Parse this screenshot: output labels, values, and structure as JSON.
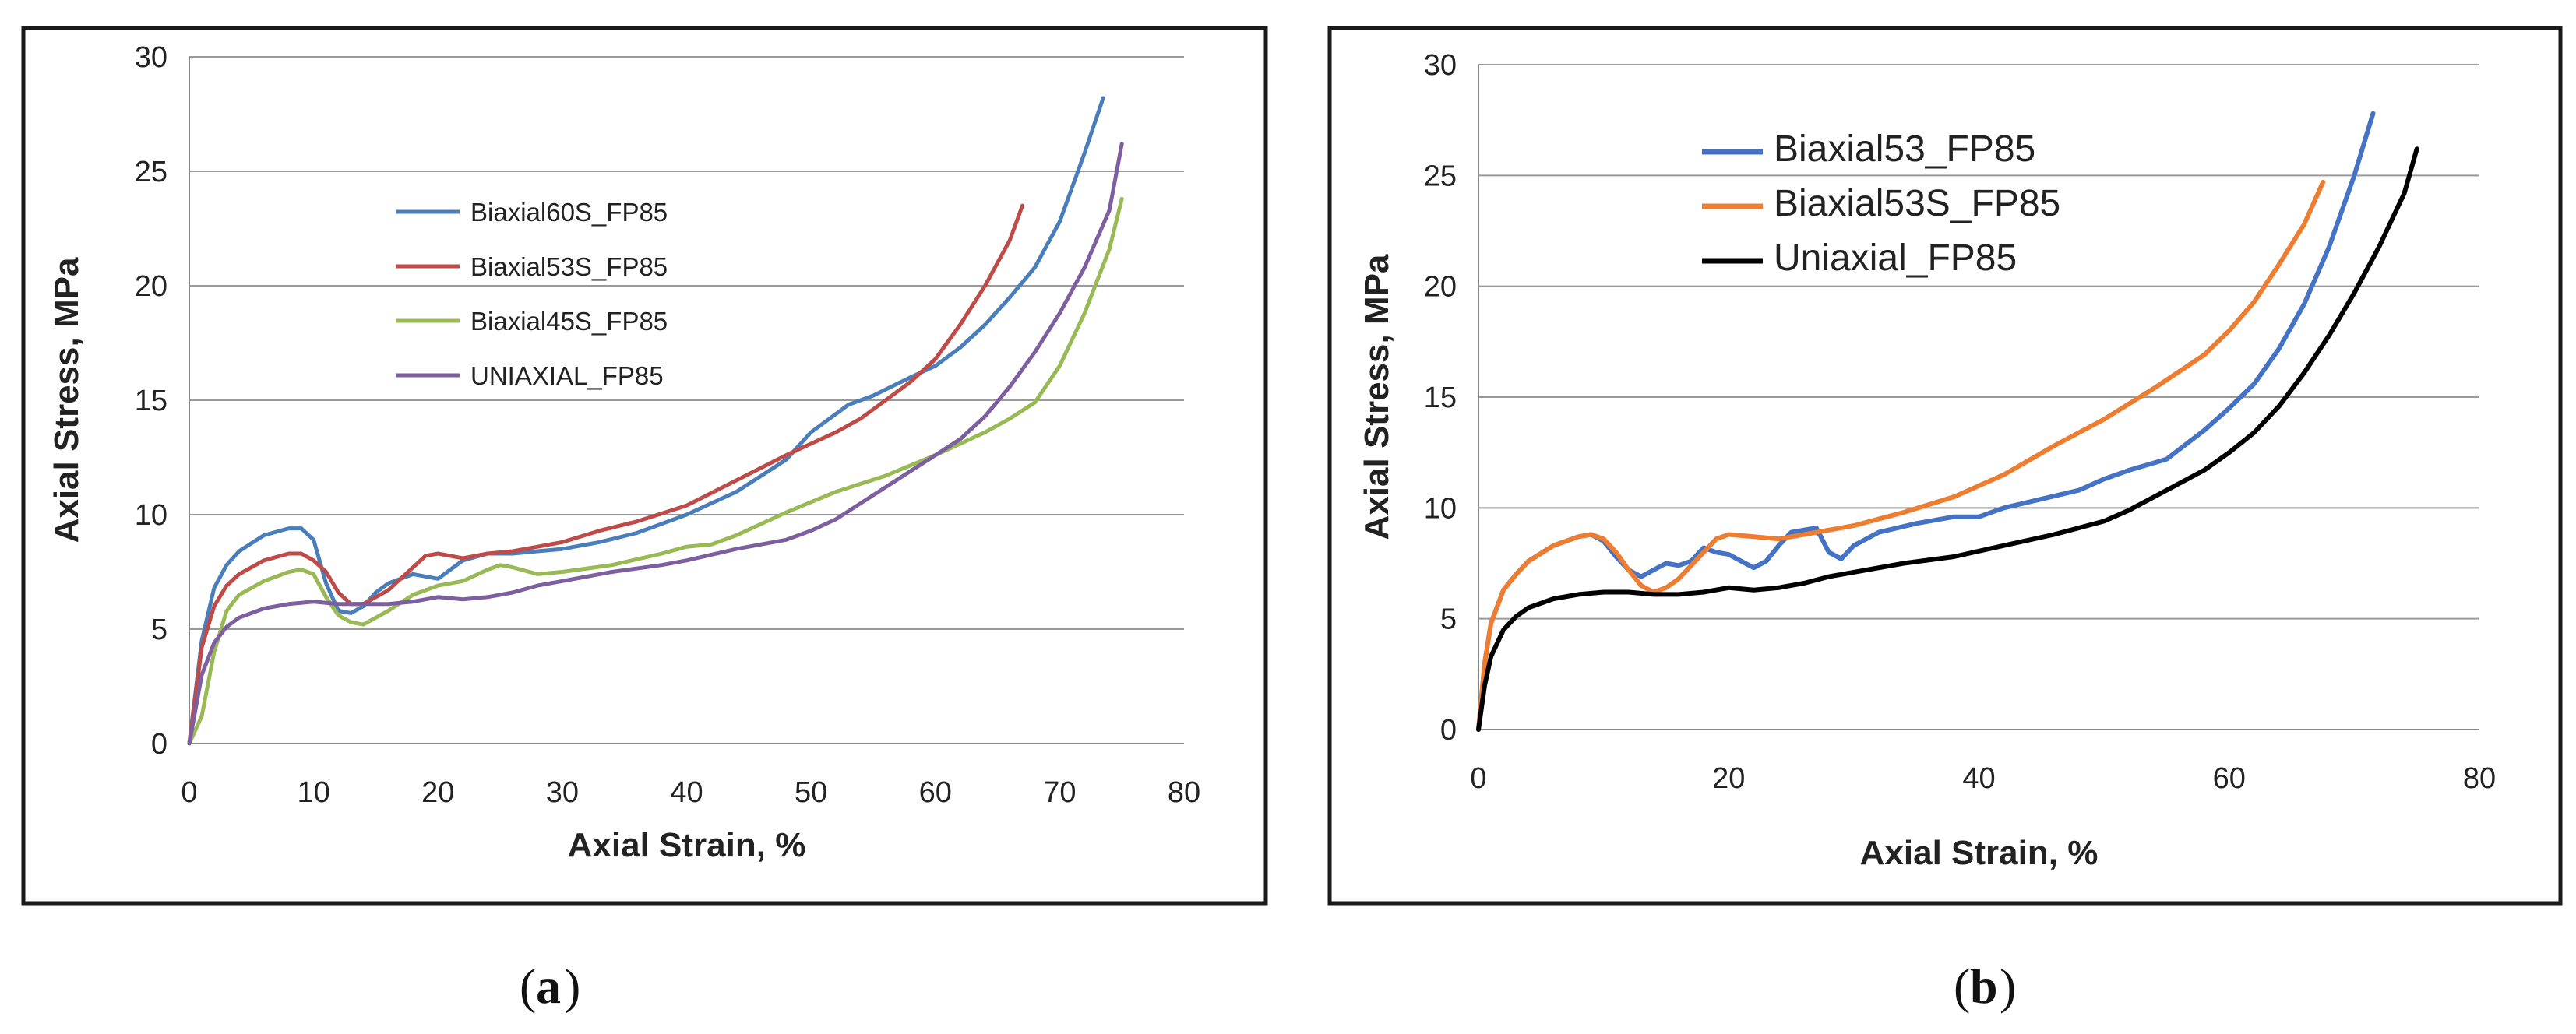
{
  "chart_data": [
    {
      "type": "line",
      "panel_label": "a",
      "title": "",
      "xlabel": "Axial Strain, %",
      "ylabel": "Axial Stress, MPa",
      "xlim": [
        0,
        80
      ],
      "ylim": [
        0,
        30
      ],
      "xticks": [
        0,
        10,
        20,
        30,
        40,
        50,
        60,
        70,
        80
      ],
      "yticks": [
        0,
        5,
        10,
        15,
        20,
        25,
        30
      ],
      "grid": true,
      "legend_position": "upper-left",
      "series": [
        {
          "name": "Biaxial60S_FP85",
          "color": "#4a7ebb",
          "x": [
            0,
            1,
            2,
            3,
            4,
            6,
            8,
            9,
            10,
            11,
            12,
            13,
            14,
            15,
            16,
            18,
            20,
            22,
            24,
            26,
            28,
            30,
            33,
            36,
            40,
            44,
            48,
            50,
            52,
            53,
            55,
            58,
            60,
            62,
            64,
            66,
            68,
            70,
            72,
            73.5
          ],
          "y": [
            0,
            4.5,
            6.8,
            7.8,
            8.4,
            9.1,
            9.4,
            9.4,
            8.9,
            7.0,
            5.8,
            5.7,
            6.0,
            6.6,
            7.0,
            7.4,
            7.2,
            8.0,
            8.3,
            8.3,
            8.4,
            8.5,
            8.8,
            9.2,
            10.0,
            11.0,
            12.4,
            13.6,
            14.4,
            14.8,
            15.2,
            16.0,
            16.5,
            17.3,
            18.3,
            19.5,
            20.8,
            22.8,
            25.8,
            28.2
          ]
        },
        {
          "name": "Biaxial53S_FP85",
          "color": "#be4b48",
          "x": [
            0,
            1,
            2,
            3,
            4,
            6,
            8,
            9,
            10,
            11,
            12,
            13,
            14,
            16,
            18,
            19,
            20,
            22,
            24,
            26,
            28,
            30,
            33,
            36,
            40,
            44,
            48,
            50,
            52,
            54,
            56,
            58,
            60,
            62,
            64,
            66,
            67
          ],
          "y": [
            0,
            4.2,
            6.0,
            6.9,
            7.4,
            8.0,
            8.3,
            8.3,
            8.0,
            7.5,
            6.6,
            6.1,
            6.1,
            6.7,
            7.7,
            8.2,
            8.3,
            8.1,
            8.3,
            8.4,
            8.6,
            8.8,
            9.3,
            9.7,
            10.4,
            11.5,
            12.6,
            13.1,
            13.6,
            14.2,
            15.0,
            15.8,
            16.8,
            18.3,
            20.0,
            22.0,
            23.5
          ]
        },
        {
          "name": "Biaxial45S_FP85",
          "color": "#98b954",
          "x": [
            0,
            1,
            2,
            3,
            4,
            6,
            8,
            9,
            10,
            11,
            12,
            13,
            14,
            16,
            18,
            20,
            22,
            24,
            25,
            26,
            28,
            30,
            34,
            38,
            40,
            42,
            44,
            48,
            52,
            56,
            60,
            64,
            66,
            68,
            70,
            72,
            74,
            75
          ],
          "y": [
            0,
            1.2,
            4.0,
            5.8,
            6.5,
            7.1,
            7.5,
            7.6,
            7.4,
            6.4,
            5.6,
            5.3,
            5.2,
            5.8,
            6.5,
            6.9,
            7.1,
            7.6,
            7.8,
            7.7,
            7.4,
            7.5,
            7.8,
            8.3,
            8.6,
            8.7,
            9.1,
            10.1,
            11.0,
            11.7,
            12.6,
            13.6,
            14.2,
            14.9,
            16.5,
            18.8,
            21.6,
            23.8
          ]
        },
        {
          "name": "UNIAXIAL_FP85",
          "color": "#7d5fa0",
          "x": [
            0,
            1,
            2,
            3,
            4,
            6,
            8,
            10,
            12,
            14,
            16,
            18,
            20,
            22,
            24,
            26,
            28,
            30,
            34,
            38,
            40,
            44,
            48,
            50,
            52,
            54,
            56,
            58,
            60,
            62,
            64,
            66,
            68,
            70,
            72,
            74,
            75
          ],
          "y": [
            0,
            3.0,
            4.4,
            5.1,
            5.5,
            5.9,
            6.1,
            6.2,
            6.1,
            6.1,
            6.1,
            6.2,
            6.4,
            6.3,
            6.4,
            6.6,
            6.9,
            7.1,
            7.5,
            7.8,
            8.0,
            8.5,
            8.9,
            9.3,
            9.8,
            10.5,
            11.2,
            11.9,
            12.6,
            13.3,
            14.3,
            15.6,
            17.1,
            18.8,
            20.8,
            23.3,
            26.2
          ]
        }
      ],
      "legend": [
        "Biaxial60S_FP85",
        "Biaxial53S_FP85",
        "Biaxial45S_FP85",
        "UNIAXIAL_FP85"
      ]
    },
    {
      "type": "line",
      "panel_label": "b",
      "title": "",
      "xlabel": "Axial Strain, %",
      "ylabel": "Axial Stress, MPa",
      "xlim": [
        0,
        80
      ],
      "ylim": [
        0,
        30
      ],
      "xticks": [
        0,
        20,
        40,
        60,
        80
      ],
      "yticks": [
        0,
        5,
        10,
        15,
        20,
        25,
        30
      ],
      "grid": true,
      "legend_position": "upper-left",
      "series": [
        {
          "name": "Biaxial53_FP85",
          "color": "#4472c4",
          "x": [
            0,
            0.5,
            1,
            2,
            3,
            4,
            6,
            8,
            9,
            10,
            11,
            12,
            13,
            14,
            15,
            16,
            17,
            18,
            19,
            20,
            21,
            22,
            23,
            24,
            25,
            26,
            27,
            28,
            29,
            30,
            32,
            35,
            38,
            40,
            42,
            45,
            48,
            50,
            52,
            55,
            58,
            60,
            62,
            64,
            66,
            68,
            70,
            71.5
          ],
          "y": [
            0,
            3.0,
            4.8,
            6.3,
            7.0,
            7.6,
            8.3,
            8.7,
            8.8,
            8.5,
            7.8,
            7.2,
            6.9,
            7.2,
            7.5,
            7.4,
            7.6,
            8.2,
            8.0,
            7.9,
            7.6,
            7.3,
            7.6,
            8.3,
            8.9,
            9.0,
            9.1,
            8.0,
            7.7,
            8.3,
            8.9,
            9.3,
            9.6,
            9.6,
            10.0,
            10.4,
            10.8,
            11.3,
            11.7,
            12.2,
            13.5,
            14.5,
            15.6,
            17.2,
            19.2,
            21.8,
            25.0,
            27.8
          ]
        },
        {
          "name": "Biaxial53S_FP85",
          "color": "#ed7d31",
          "x": [
            0,
            0.5,
            1,
            2,
            3,
            4,
            6,
            8,
            9,
            10,
            11,
            12,
            13,
            14,
            15,
            16,
            17,
            18,
            19,
            20,
            22,
            24,
            26,
            28,
            30,
            34,
            38,
            42,
            46,
            50,
            54,
            58,
            60,
            62,
            64,
            66,
            67.5
          ],
          "y": [
            0,
            3.0,
            4.8,
            6.3,
            7.0,
            7.6,
            8.3,
            8.7,
            8.8,
            8.6,
            8.0,
            7.2,
            6.5,
            6.2,
            6.4,
            6.8,
            7.4,
            8.0,
            8.6,
            8.8,
            8.7,
            8.6,
            8.8,
            9.0,
            9.2,
            9.8,
            10.5,
            11.5,
            12.8,
            14.0,
            15.4,
            16.9,
            18.0,
            19.3,
            21.0,
            22.8,
            24.7
          ]
        },
        {
          "name": "Uniaxial_FP85",
          "color": "#000000",
          "x": [
            0,
            0.5,
            1,
            2,
            3,
            4,
            6,
            8,
            10,
            12,
            14,
            16,
            18,
            20,
            22,
            24,
            26,
            28,
            30,
            34,
            38,
            42,
            46,
            50,
            52,
            55,
            58,
            60,
            62,
            64,
            66,
            68,
            70,
            72,
            74,
            75
          ],
          "y": [
            0,
            2.0,
            3.3,
            4.5,
            5.1,
            5.5,
            5.9,
            6.1,
            6.2,
            6.2,
            6.1,
            6.1,
            6.2,
            6.4,
            6.3,
            6.4,
            6.6,
            6.9,
            7.1,
            7.5,
            7.8,
            8.3,
            8.8,
            9.4,
            9.9,
            10.8,
            11.7,
            12.5,
            13.4,
            14.6,
            16.1,
            17.8,
            19.7,
            21.8,
            24.2,
            26.2
          ]
        }
      ],
      "legend": [
        "Biaxial53_FP85",
        "Biaxial53S_FP85",
        "Uniaxial_FP85"
      ]
    }
  ],
  "captions": {
    "a": "a",
    "b": "b"
  }
}
